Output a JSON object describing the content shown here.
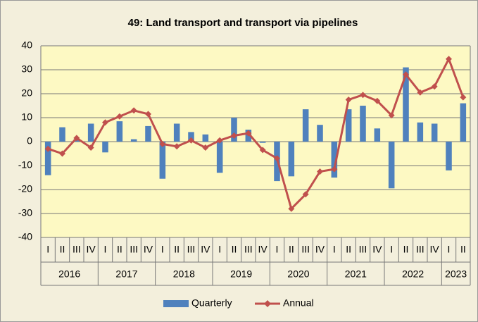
{
  "chart_data": {
    "type": "bar-line",
    "title": "49: Land transport and transport via pipelines",
    "categories": [
      "I",
      "II",
      "III",
      "IV",
      "I",
      "II",
      "III",
      "IV",
      "I",
      "II",
      "III",
      "IV",
      "I",
      "II",
      "III",
      "IV",
      "I",
      "II",
      "III",
      "IV",
      "I",
      "II",
      "III",
      "IV",
      "I",
      "II",
      "III",
      "IV",
      "I",
      "II"
    ],
    "years": [
      "2016",
      "2017",
      "2018",
      "2019",
      "2020",
      "2021",
      "2022",
      "2023"
    ],
    "series": [
      {
        "name": "Quarterly",
        "color": "#4f81bd",
        "kind": "bar",
        "values": [
          -14,
          6,
          1,
          7.5,
          -4.5,
          8.5,
          1,
          6.5,
          -15.5,
          7.5,
          4,
          3,
          -13,
          10,
          5,
          -0.5,
          -16.5,
          -14.5,
          13.5,
          7,
          -15,
          13.5,
          15,
          5.5,
          -19.5,
          31,
          8,
          7.5,
          -12,
          16
        ]
      },
      {
        "name": "Annual",
        "color": "#c0504d",
        "kind": "line",
        "values": [
          -3,
          -5,
          1.5,
          -2.5,
          8,
          10.5,
          13,
          11.5,
          -1,
          -2,
          0.5,
          -2.5,
          0.5,
          2.5,
          3.5,
          -3.5,
          -7,
          -28,
          -22,
          -12.5,
          -11.5,
          17.5,
          19.5,
          17,
          11,
          28,
          20.5,
          23,
          34.5,
          18.5
        ]
      }
    ],
    "ylim": [
      -40,
      40
    ],
    "yticks": [
      -40,
      -30,
      -20,
      -10,
      0,
      10,
      20,
      30,
      40
    ],
    "grid": true
  }
}
